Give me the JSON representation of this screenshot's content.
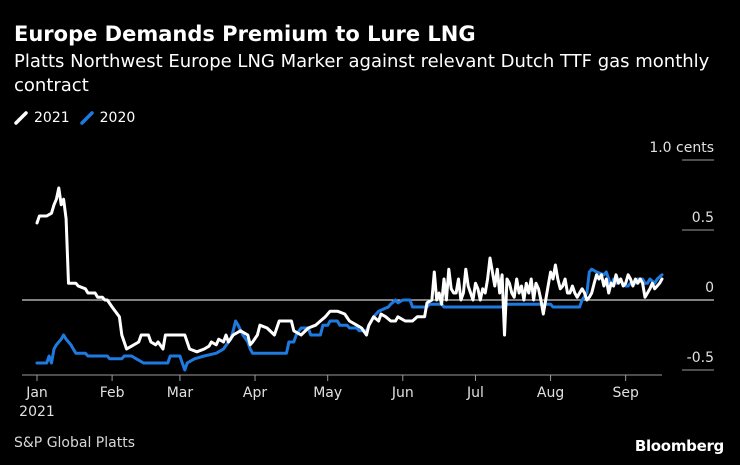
{
  "header": {
    "title": "Europe Demands Premium to Lure LNG",
    "subtitle": "Platts Northwest Europe LNG Marker against relevant Dutch TTF gas monthly contract"
  },
  "legend": [
    {
      "label": "2021",
      "color": "#ffffff"
    },
    {
      "label": "2020",
      "color": "#1f7ae0"
    }
  ],
  "footer": {
    "source": "S&P Global Platts",
    "brand": "Bloomberg"
  },
  "chart_data": {
    "type": "line",
    "title": "Europe Demands Premium to Lure LNG",
    "subtitle": "Platts Northwest Europe LNG Marker against relevant Dutch TTF gas monthly contract",
    "xlabel": "",
    "ylabel": "cents",
    "x_unit": "day of year",
    "xlim": [
      1,
      268
    ],
    "ylim": [
      -0.5,
      1.0
    ],
    "y_ticks": [
      {
        "value": 1.0,
        "label": "1.0 cents"
      },
      {
        "value": 0.5,
        "label": "0.5"
      },
      {
        "value": 0,
        "label": "0"
      },
      {
        "value": -0.5,
        "label": "-0.5"
      }
    ],
    "x_ticks": [
      {
        "value": 1,
        "label": "Jan",
        "sublabel": "2021"
      },
      {
        "value": 32,
        "label": "Feb"
      },
      {
        "value": 60,
        "label": "Mar"
      },
      {
        "value": 91,
        "label": "Apr"
      },
      {
        "value": 121,
        "label": "May"
      },
      {
        "value": 152,
        "label": "Jun"
      },
      {
        "value": 182,
        "label": "Jul"
      },
      {
        "value": 213,
        "label": "Aug"
      },
      {
        "value": 244,
        "label": "Sep"
      }
    ],
    "legend_position": "top-left",
    "grid": false,
    "zero_line": true,
    "series": [
      {
        "name": "2021",
        "color": "#ffffff",
        "points": [
          [
            1,
            0.55
          ],
          [
            2,
            0.6
          ],
          [
            5,
            0.6
          ],
          [
            7,
            0.62
          ],
          [
            8,
            0.68
          ],
          [
            9,
            0.72
          ],
          [
            10,
            0.8
          ],
          [
            11,
            0.68
          ],
          [
            12,
            0.72
          ],
          [
            13,
            0.58
          ],
          [
            14,
            0.12
          ],
          [
            17,
            0.12
          ],
          [
            18,
            0.1
          ],
          [
            21,
            0.08
          ],
          [
            22,
            0.05
          ],
          [
            25,
            0.05
          ],
          [
            26,
            0.02
          ],
          [
            28,
            0.02
          ],
          [
            29,
            0.0
          ],
          [
            30,
            0.0
          ],
          [
            32,
            -0.05
          ],
          [
            35,
            -0.12
          ],
          [
            36,
            -0.25
          ],
          [
            38,
            -0.35
          ],
          [
            40,
            -0.33
          ],
          [
            43,
            -0.3
          ],
          [
            44,
            -0.25
          ],
          [
            47,
            -0.25
          ],
          [
            48,
            -0.3
          ],
          [
            50,
            -0.32
          ],
          [
            51,
            -0.3
          ],
          [
            53,
            -0.35
          ],
          [
            54,
            -0.25
          ],
          [
            62,
            -0.25
          ],
          [
            63,
            -0.3
          ],
          [
            64,
            -0.35
          ],
          [
            67,
            -0.37
          ],
          [
            70,
            -0.35
          ],
          [
            72,
            -0.33
          ],
          [
            73,
            -0.3
          ],
          [
            75,
            -0.32
          ],
          [
            76,
            -0.28
          ],
          [
            78,
            -0.3
          ],
          [
            79,
            -0.25
          ],
          [
            80,
            -0.3
          ],
          [
            82,
            -0.25
          ],
          [
            85,
            -0.22
          ],
          [
            88,
            -0.25
          ],
          [
            89,
            -0.32
          ],
          [
            90,
            -0.3
          ],
          [
            92,
            -0.25
          ],
          [
            93,
            -0.18
          ],
          [
            96,
            -0.2
          ],
          [
            99,
            -0.25
          ],
          [
            100,
            -0.2
          ],
          [
            101,
            -0.15
          ],
          [
            106,
            -0.15
          ],
          [
            107,
            -0.22
          ],
          [
            110,
            -0.25
          ],
          [
            113,
            -0.2
          ],
          [
            116,
            -0.18
          ],
          [
            118,
            -0.15
          ],
          [
            120,
            -0.12
          ],
          [
            122,
            -0.08
          ],
          [
            125,
            -0.08
          ],
          [
            128,
            -0.1
          ],
          [
            130,
            -0.15
          ],
          [
            133,
            -0.18
          ],
          [
            135,
            -0.2
          ],
          [
            137,
            -0.25
          ],
          [
            138,
            -0.18
          ],
          [
            140,
            -0.12
          ],
          [
            142,
            -0.15
          ],
          [
            143,
            -0.1
          ],
          [
            145,
            -0.12
          ],
          [
            147,
            -0.15
          ],
          [
            149,
            -0.15
          ],
          [
            150,
            -0.12
          ],
          [
            153,
            -0.15
          ],
          [
            156,
            -0.15
          ],
          [
            158,
            -0.12
          ],
          [
            161,
            -0.12
          ],
          [
            162,
            -0.02
          ],
          [
            164,
            0.0
          ],
          [
            165,
            0.2
          ],
          [
            166,
            0.0
          ],
          [
            167,
            0.05
          ],
          [
            168,
            -0.03
          ],
          [
            169,
            0.15
          ],
          [
            170,
            0.0
          ],
          [
            171,
            0.22
          ],
          [
            172,
            0.08
          ],
          [
            173,
            0.05
          ],
          [
            174,
            0.05
          ],
          [
            175,
            0.15
          ],
          [
            176,
            0.0
          ],
          [
            177,
            0.05
          ],
          [
            178,
            0.22
          ],
          [
            179,
            0.1
          ],
          [
            180,
            0.05
          ],
          [
            181,
            0.0
          ],
          [
            182,
            0.12
          ],
          [
            183,
            0.08
          ],
          [
            184,
            0.0
          ],
          [
            185,
            0.08
          ],
          [
            186,
            0.05
          ],
          [
            187,
            0.15
          ],
          [
            188,
            0.3
          ],
          [
            189,
            0.2
          ],
          [
            190,
            0.1
          ],
          [
            191,
            0.22
          ],
          [
            192,
            0.05
          ],
          [
            193,
            0.18
          ],
          [
            194,
            -0.25
          ],
          [
            195,
            0.15
          ],
          [
            196,
            0.12
          ],
          [
            197,
            0.05
          ],
          [
            198,
            0.02
          ],
          [
            199,
            0.15
          ],
          [
            200,
            0.05
          ],
          [
            201,
            0.1
          ],
          [
            202,
            0.0
          ],
          [
            203,
            0.12
          ],
          [
            204,
            0.05
          ],
          [
            205,
            0.15
          ],
          [
            206,
            0.0
          ],
          [
            207,
            0.12
          ],
          [
            208,
            0.08
          ],
          [
            209,
            0.0
          ],
          [
            210,
            -0.1
          ],
          [
            211,
            0.0
          ],
          [
            212,
            0.1
          ],
          [
            213,
            0.2
          ],
          [
            214,
            0.15
          ],
          [
            215,
            0.25
          ],
          [
            216,
            0.15
          ],
          [
            217,
            0.08
          ],
          [
            218,
            0.1
          ],
          [
            219,
            0.15
          ],
          [
            220,
            0.05
          ],
          [
            221,
            0.05
          ],
          [
            222,
            0.1
          ],
          [
            223,
            0.05
          ],
          [
            224,
            0.02
          ],
          [
            225,
            0.05
          ],
          [
            226,
            0.08
          ],
          [
            227,
            0.05
          ],
          [
            228,
            0.0
          ],
          [
            229,
            0.02
          ],
          [
            230,
            0.05
          ],
          [
            231,
            0.12
          ],
          [
            232,
            0.18
          ],
          [
            233,
            0.15
          ],
          [
            234,
            0.18
          ],
          [
            235,
            0.1
          ],
          [
            236,
            0.15
          ],
          [
            237,
            0.05
          ],
          [
            238,
            0.12
          ],
          [
            239,
            0.1
          ],
          [
            240,
            0.18
          ],
          [
            241,
            0.12
          ],
          [
            242,
            0.15
          ],
          [
            243,
            0.1
          ],
          [
            244,
            0.12
          ],
          [
            245,
            0.18
          ],
          [
            246,
            0.15
          ],
          [
            247,
            0.1
          ],
          [
            248,
            0.15
          ],
          [
            249,
            0.12
          ],
          [
            250,
            0.15
          ],
          [
            251,
            0.12
          ],
          [
            252,
            0.02
          ],
          [
            253,
            0.05
          ],
          [
            254,
            0.08
          ],
          [
            255,
            0.12
          ],
          [
            256,
            0.08
          ],
          [
            257,
            0.1
          ],
          [
            258,
            0.12
          ],
          [
            259,
            0.15
          ]
        ]
      },
      {
        "name": "2020",
        "color": "#1f7ae0",
        "points": [
          [
            1,
            -0.45
          ],
          [
            5,
            -0.45
          ],
          [
            6,
            -0.4
          ],
          [
            7,
            -0.45
          ],
          [
            8,
            -0.35
          ],
          [
            9,
            -0.32
          ],
          [
            10,
            -0.3
          ],
          [
            11,
            -0.28
          ],
          [
            12,
            -0.25
          ],
          [
            13,
            -0.28
          ],
          [
            14,
            -0.3
          ],
          [
            15,
            -0.32
          ],
          [
            16,
            -0.35
          ],
          [
            17,
            -0.38
          ],
          [
            21,
            -0.38
          ],
          [
            22,
            -0.4
          ],
          [
            30,
            -0.4
          ],
          [
            31,
            -0.42
          ],
          [
            36,
            -0.42
          ],
          [
            37,
            -0.4
          ],
          [
            40,
            -0.4
          ],
          [
            42,
            -0.42
          ],
          [
            45,
            -0.45
          ],
          [
            55,
            -0.45
          ],
          [
            56,
            -0.4
          ],
          [
            60,
            -0.4
          ],
          [
            61,
            -0.45
          ],
          [
            62,
            -0.5
          ],
          [
            63,
            -0.45
          ],
          [
            66,
            -0.42
          ],
          [
            70,
            -0.4
          ],
          [
            75,
            -0.38
          ],
          [
            78,
            -0.35
          ],
          [
            80,
            -0.3
          ],
          [
            81,
            -0.28
          ],
          [
            82,
            -0.22
          ],
          [
            83,
            -0.15
          ],
          [
            84,
            -0.18
          ],
          [
            86,
            -0.25
          ],
          [
            88,
            -0.3
          ],
          [
            89,
            -0.35
          ],
          [
            90,
            -0.38
          ],
          [
            104,
            -0.38
          ],
          [
            105,
            -0.3
          ],
          [
            107,
            -0.3
          ],
          [
            108,
            -0.25
          ],
          [
            110,
            -0.2
          ],
          [
            113,
            -0.2
          ],
          [
            114,
            -0.25
          ],
          [
            118,
            -0.25
          ],
          [
            119,
            -0.18
          ],
          [
            121,
            -0.18
          ],
          [
            122,
            -0.15
          ],
          [
            125,
            -0.15
          ],
          [
            126,
            -0.18
          ],
          [
            129,
            -0.18
          ],
          [
            130,
            -0.2
          ],
          [
            133,
            -0.2
          ],
          [
            134,
            -0.22
          ],
          [
            137,
            -0.22
          ],
          [
            138,
            -0.18
          ],
          [
            140,
            -0.12
          ],
          [
            142,
            -0.08
          ],
          [
            146,
            -0.05
          ],
          [
            147,
            -0.03
          ],
          [
            149,
            0.0
          ],
          [
            150,
            -0.02
          ],
          [
            152,
            0.0
          ],
          [
            155,
            0.0
          ],
          [
            156,
            -0.05
          ],
          [
            162,
            -0.05
          ],
          [
            163,
            -0.03
          ],
          [
            168,
            -0.03
          ],
          [
            169,
            -0.05
          ],
          [
            194,
            -0.05
          ],
          [
            195,
            -0.03
          ],
          [
            213,
            -0.03
          ],
          [
            214,
            -0.05
          ],
          [
            225,
            -0.05
          ],
          [
            226,
            0.0
          ],
          [
            228,
            0.05
          ],
          [
            229,
            0.2
          ],
          [
            230,
            0.22
          ],
          [
            232,
            0.2
          ],
          [
            235,
            0.18
          ],
          [
            236,
            0.2
          ],
          [
            238,
            0.1
          ],
          [
            239,
            0.15
          ],
          [
            240,
            0.12
          ],
          [
            241,
            0.15
          ],
          [
            244,
            0.1
          ],
          [
            245,
            0.1
          ],
          [
            246,
            0.12
          ],
          [
            248,
            0.12
          ],
          [
            249,
            0.15
          ],
          [
            251,
            0.15
          ],
          [
            252,
            0.12
          ],
          [
            253,
            0.12
          ],
          [
            254,
            0.15
          ],
          [
            256,
            0.12
          ],
          [
            257,
            0.15
          ],
          [
            259,
            0.18
          ]
        ]
      }
    ]
  }
}
